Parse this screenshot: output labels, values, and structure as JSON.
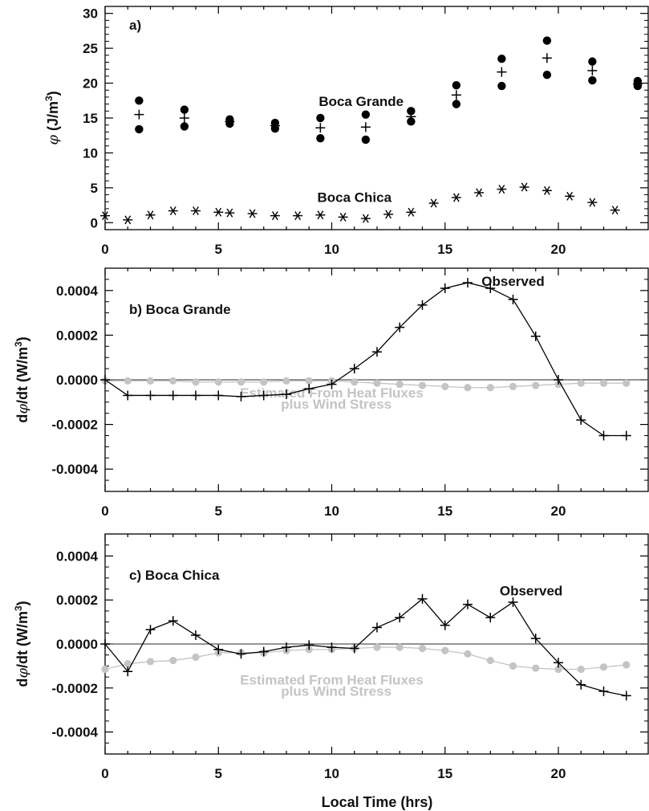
{
  "chart_data": [
    {
      "type": "scatter",
      "panel_label": "a)",
      "ylabel_prefix": "φ",
      "ylabel_main": " (J/m",
      "ylabel_sup": "3",
      "ylabel_suffix": ")",
      "xlim": [
        0,
        24
      ],
      "ylim": [
        -1,
        31
      ],
      "x_ticks": [
        0,
        5,
        10,
        15,
        20
      ],
      "y_ticks": [
        0,
        5,
        10,
        15,
        20,
        25,
        30
      ],
      "annotations": [
        {
          "text": "Boca Grande",
          "x": 11.3,
          "y": 16.7
        },
        {
          "text": "Boca Chica",
          "x": 11.0,
          "y": 3.0
        }
      ],
      "series": [
        {
          "marker": "dot",
          "x": [
            1.5,
            1.5,
            3.5,
            3.5,
            5.5,
            5.5,
            7.5,
            7.5,
            9.5,
            9.5,
            11.5,
            11.5,
            13.5,
            13.5,
            15.5,
            15.5,
            17.5,
            17.5,
            19.5,
            19.5,
            21.5,
            21.5,
            23.5,
            23.5
          ],
          "y": [
            17.5,
            13.4,
            16.2,
            13.8,
            14.8,
            14.2,
            14.3,
            13.5,
            15.0,
            12.1,
            15.5,
            11.9,
            16.0,
            14.5,
            19.7,
            17.0,
            23.5,
            19.6,
            26.1,
            21.2,
            23.1,
            20.4,
            20.3,
            19.6
          ]
        },
        {
          "marker": "plus",
          "x": [
            1.5,
            3.5,
            5.5,
            7.5,
            9.5,
            11.5,
            13.5,
            15.5,
            17.5,
            19.5,
            21.5,
            23.5
          ],
          "y": [
            15.5,
            15.0,
            14.5,
            13.9,
            13.6,
            13.7,
            15.2,
            18.3,
            21.6,
            23.6,
            21.8,
            19.9
          ]
        },
        {
          "marker": "asterisk",
          "x": [
            0,
            1,
            2,
            3,
            4,
            5,
            5.5,
            6.5,
            7.5,
            8.5,
            9.5,
            10.5,
            11.5,
            12.5,
            13.5,
            14.5,
            15.5,
            16.5,
            17.5,
            18.5,
            19.5,
            20.5,
            21.5,
            22.5
          ],
          "y": [
            1.0,
            0.4,
            1.1,
            1.7,
            1.7,
            1.5,
            1.4,
            1.3,
            1.0,
            1.0,
            1.1,
            0.8,
            0.6,
            1.2,
            1.5,
            2.8,
            3.6,
            4.3,
            4.8,
            5.1,
            4.6,
            3.8,
            2.9,
            1.8
          ]
        }
      ]
    },
    {
      "type": "line",
      "panel_label": "b) Boca Grande",
      "ylabel_prefix": "d",
      "ylabel_phi": "φ",
      "ylabel_main": "/dt (W/m",
      "ylabel_sup": "3",
      "ylabel_suffix": ")",
      "xlim": [
        0,
        24
      ],
      "ylim": [
        -0.0005,
        0.0005
      ],
      "x_ticks": [
        0,
        5,
        10,
        15,
        20
      ],
      "y_ticks": [
        -0.0004,
        -0.0002,
        0.0,
        0.0002,
        0.0004
      ],
      "y_tick_labels": [
        "-0.0004",
        "-0.0002",
        "0.0000",
        "0.0002",
        "0.0004"
      ],
      "annotations": [
        {
          "text": "Observed",
          "x": 18.0,
          "y": 0.00042,
          "style": "dark"
        },
        {
          "text": "Estimated From Heat Fluxes",
          "x": 10.0,
          "y": -8e-05,
          "style": "gray"
        },
        {
          "text": "plus Wind Stress",
          "x": 10.2,
          "y": -0.00013,
          "style": "gray"
        }
      ],
      "series": [
        {
          "name": "Observed",
          "color": "#000000",
          "marker": "plus",
          "x": [
            0,
            1,
            2,
            3,
            4,
            5,
            6,
            7,
            8,
            9,
            10,
            11,
            12,
            13,
            14,
            15,
            16,
            17,
            18,
            19,
            20,
            21,
            22,
            23
          ],
          "y": [
            0.0,
            -7e-05,
            -7e-05,
            -7e-05,
            -7e-05,
            -7e-05,
            -7.5e-05,
            -7e-05,
            -6.5e-05,
            -4e-05,
            -2e-05,
            5e-05,
            0.000125,
            0.000235,
            0.000335,
            0.00041,
            0.000435,
            0.00041,
            0.00036,
            0.000195,
            0.0,
            -0.00018,
            -0.00025,
            -0.00025
          ]
        },
        {
          "name": "Estimated From Heat Fluxes plus Wind Stress",
          "color": "#c4c4c4",
          "marker": "dot",
          "x": [
            0,
            1,
            2,
            3,
            4,
            5,
            6,
            7,
            8,
            9,
            10,
            11,
            12,
            13,
            14,
            15,
            16,
            17,
            18,
            19,
            20,
            21,
            22,
            23
          ],
          "y": [
            -5e-06,
            -5e-06,
            -5e-06,
            -5e-06,
            -1e-05,
            -1e-05,
            -1e-05,
            -1e-05,
            -5e-06,
            -5e-06,
            -5e-06,
            -1e-05,
            -1.5e-05,
            -2e-05,
            -2.5e-05,
            -3e-05,
            -3.5e-05,
            -3.5e-05,
            -3e-05,
            -2.5e-05,
            -2e-05,
            -1.5e-05,
            -1.5e-05,
            -1.5e-05
          ]
        }
      ]
    },
    {
      "type": "line",
      "panel_label": "c) Boca Chica",
      "ylabel_prefix": "d",
      "ylabel_phi": "φ",
      "ylabel_main": "/dt (W/m",
      "ylabel_sup": "3",
      "ylabel_suffix": ")",
      "xlim": [
        0,
        24
      ],
      "ylim": [
        -0.0005,
        0.0005
      ],
      "x_ticks": [
        0,
        5,
        10,
        15,
        20
      ],
      "y_ticks": [
        -0.0004,
        -0.0002,
        0.0,
        0.0002,
        0.0004
      ],
      "y_tick_labels": [
        "-0.0004",
        "-0.0002",
        "0.0000",
        "0.0002",
        "0.0004"
      ],
      "xlabel": "Local Time (hrs)",
      "annotations": [
        {
          "text": "Observed",
          "x": 18.8,
          "y": 0.00022,
          "style": "dark"
        },
        {
          "text": "Estimated From Heat Fluxes",
          "x": 10.0,
          "y": -0.000185,
          "style": "gray"
        },
        {
          "text": "plus Wind Stress",
          "x": 10.2,
          "y": -0.000235,
          "style": "gray"
        }
      ],
      "series": [
        {
          "name": "Observed",
          "color": "#000000",
          "marker": "plus",
          "x": [
            0,
            1,
            2,
            3,
            4,
            5,
            6,
            7,
            8,
            9,
            10,
            11,
            12,
            13,
            14,
            15,
            16,
            17,
            18,
            19,
            20,
            21,
            22,
            23
          ],
          "y": [
            0.0,
            -0.000125,
            6.5e-05,
            0.000105,
            4e-05,
            -2.5e-05,
            -4.5e-05,
            -3.5e-05,
            -1.5e-05,
            -5e-06,
            -1.5e-05,
            -2e-05,
            7.5e-05,
            0.00012,
            0.000205,
            8.5e-05,
            0.00018,
            0.00012,
            0.00019,
            2.5e-05,
            -8.5e-05,
            -0.000185,
            -0.000215,
            -0.000235
          ]
        },
        {
          "name": "Estimated From Heat Fluxes plus Wind Stress",
          "color": "#c4c4c4",
          "marker": "dot",
          "x": [
            0,
            1,
            2,
            3,
            4,
            5,
            6,
            7,
            8,
            9,
            10,
            11,
            12,
            13,
            14,
            15,
            16,
            17,
            18,
            19,
            20,
            21,
            22,
            23
          ],
          "y": [
            -0.000115,
            -9e-05,
            -8e-05,
            -7.5e-05,
            -6e-05,
            -4e-05,
            -4e-05,
            -4e-05,
            -3e-05,
            -2.5e-05,
            -2.5e-05,
            -2e-05,
            -1.5e-05,
            -1.5e-05,
            -2e-05,
            -3e-05,
            -4.5e-05,
            -7.5e-05,
            -0.0001,
            -0.00011,
            -0.000115,
            -0.000115,
            -0.000105,
            -9.5e-05
          ]
        }
      ]
    }
  ]
}
